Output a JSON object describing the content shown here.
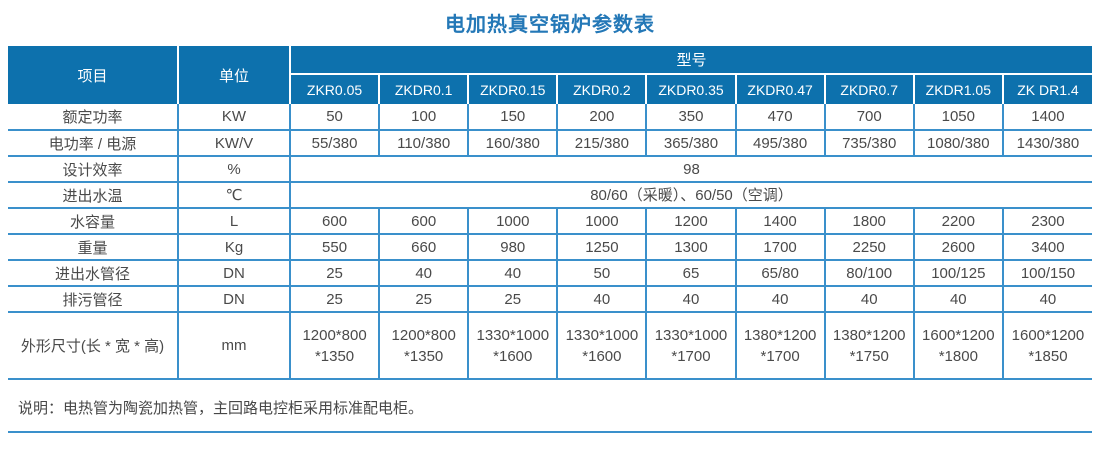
{
  "title": "电加热真空锅炉参数表",
  "colors": {
    "header_bg": "#0d71ad",
    "border_blue": "#3a90cb",
    "title_blue": "#2478b7",
    "body_text": "#4a4a4a",
    "header_text": "#ffffff"
  },
  "table": {
    "header": {
      "item_label": "项目",
      "unit_label": "单位",
      "model_label": "型号",
      "models": [
        "ZKR0.05",
        "ZKDR0.1",
        "ZKDR0.15",
        "ZKDR0.2",
        "ZKDR0.35",
        "ZKDR0.47",
        "ZKDR0.7",
        "ZKDR1.05",
        "ZK DR1.4"
      ]
    },
    "rows": [
      {
        "item": "额定功率",
        "unit": "KW",
        "values": [
          "50",
          "100",
          "150",
          "200",
          "350",
          "470",
          "700",
          "1050",
          "1400"
        ]
      },
      {
        "item": "电功率 / 电源",
        "unit": "KW/V",
        "values": [
          "55/380",
          "110/380",
          "160/380",
          "215/380",
          "365/380",
          "495/380",
          "735/380",
          "1080/380",
          "1430/380"
        ]
      },
      {
        "item": "设计效率",
        "unit": "%",
        "span": "98"
      },
      {
        "item": "进出水温",
        "unit": "℃",
        "span": "80/60（采暖）、60/50（空调）"
      },
      {
        "item": "水容量",
        "unit": "L",
        "values": [
          "600",
          "600",
          "1000",
          "1000",
          "1200",
          "1400",
          "1800",
          "2200",
          "2300"
        ]
      },
      {
        "item": "重量",
        "unit": "Kg",
        "values": [
          "550",
          "660",
          "980",
          "1250",
          "1300",
          "1700",
          "2250",
          "2600",
          "3400"
        ]
      },
      {
        "item": "进出水管径",
        "unit": "DN",
        "values": [
          "25",
          "40",
          "40",
          "50",
          "65",
          "65/80",
          "80/100",
          "100/125",
          "100/150"
        ]
      },
      {
        "item": "排污管径",
        "unit": "DN",
        "values": [
          "25",
          "25",
          "25",
          "40",
          "40",
          "40",
          "40",
          "40",
          "40"
        ]
      },
      {
        "item": "外形尺寸(长 * 宽 * 高)",
        "unit": "mm",
        "values": [
          "1200*800\n*1350",
          "1200*800\n*1350",
          "1330*1000\n*1600",
          "1330*1000\n*1600",
          "1330*1000\n*1700",
          "1380*1200\n*1700",
          "1380*1200\n*1750",
          "1600*1200\n*1800",
          "1600*1200\n*1850"
        ]
      }
    ]
  },
  "note": "说明：电热管为陶瓷加热管，主回路电控柜采用标准配电柜。"
}
